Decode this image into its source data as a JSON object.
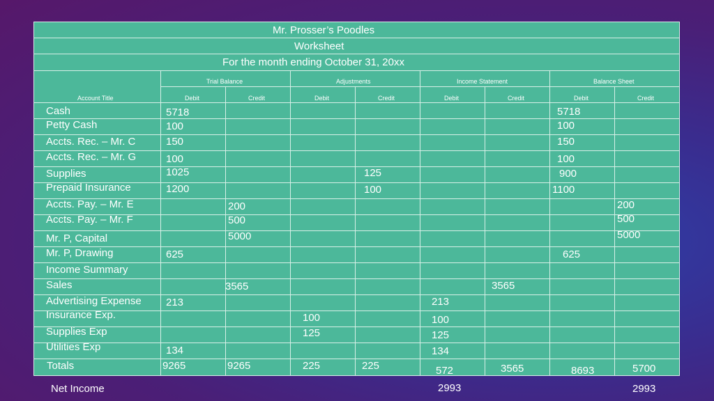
{
  "header": {
    "company": "Mr. Prosser’s Poodles",
    "document": "Worksheet",
    "period": "For the month ending October 31, 20xx"
  },
  "column_groups": {
    "trial_balance": "Trial Balance",
    "adjustments": "Adjustments",
    "income_statement": "Income Statement",
    "balance_sheet": "Balance Sheet"
  },
  "column_headers": {
    "account_title": "Account Title",
    "debit": "Debit",
    "credit": "Credit"
  },
  "rows": [
    {
      "account": "Cash",
      "tb_debit": "5718",
      "tb_credit": "",
      "adj_debit": "",
      "adj_credit": "",
      "is_debit": "",
      "is_credit": "",
      "bs_debit": "5718",
      "bs_credit": ""
    },
    {
      "account": "Petty Cash",
      "tb_debit": "100",
      "tb_credit": "",
      "adj_debit": "",
      "adj_credit": "",
      "is_debit": "",
      "is_credit": "",
      "bs_debit": "100",
      "bs_credit": ""
    },
    {
      "account": "Accts. Rec. – Mr. C",
      "tb_debit": "150",
      "tb_credit": "",
      "adj_debit": "",
      "adj_credit": "",
      "is_debit": "",
      "is_credit": "",
      "bs_debit": "150",
      "bs_credit": ""
    },
    {
      "account": "Accts. Rec. – Mr. G",
      "tb_debit": "100",
      "tb_credit": "",
      "adj_debit": "",
      "adj_credit": "",
      "is_debit": "",
      "is_credit": "",
      "bs_debit": "100",
      "bs_credit": ""
    },
    {
      "account": "Supplies",
      "tb_debit": "1025",
      "tb_credit": "",
      "adj_debit": "",
      "adj_credit": "125",
      "is_debit": "",
      "is_credit": "",
      "bs_debit": "900",
      "bs_credit": ""
    },
    {
      "account": "Prepaid Insurance",
      "tb_debit": "1200",
      "tb_credit": "",
      "adj_debit": "",
      "adj_credit": "100",
      "is_debit": "",
      "is_credit": "",
      "bs_debit": "1100",
      "bs_credit": ""
    },
    {
      "account": "Accts. Pay. – Mr. E",
      "tb_debit": "",
      "tb_credit": "200",
      "adj_debit": "",
      "adj_credit": "",
      "is_debit": "",
      "is_credit": "",
      "bs_debit": "",
      "bs_credit": "200"
    },
    {
      "account": "Accts. Pay. – Mr. F",
      "tb_debit": "",
      "tb_credit": "500",
      "adj_debit": "",
      "adj_credit": "",
      "is_debit": "",
      "is_credit": "",
      "bs_debit": "",
      "bs_credit": "500"
    },
    {
      "account": "Mr. P, Capital",
      "tb_debit": "",
      "tb_credit": "5000",
      "adj_debit": "",
      "adj_credit": "",
      "is_debit": "",
      "is_credit": "",
      "bs_debit": "",
      "bs_credit": "5000"
    },
    {
      "account": "Mr. P, Drawing",
      "tb_debit": "625",
      "tb_credit": "",
      "adj_debit": "",
      "adj_credit": "",
      "is_debit": "",
      "is_credit": "",
      "bs_debit": "625",
      "bs_credit": ""
    },
    {
      "account": "Income Summary",
      "tb_debit": "",
      "tb_credit": "",
      "adj_debit": "",
      "adj_credit": "",
      "is_debit": "",
      "is_credit": "",
      "bs_debit": "",
      "bs_credit": ""
    },
    {
      "account": "Sales",
      "tb_debit": "",
      "tb_credit": "3565",
      "adj_debit": "",
      "adj_credit": "",
      "is_debit": "",
      "is_credit": "3565",
      "bs_debit": "",
      "bs_credit": ""
    },
    {
      "account": "Advertising Expense",
      "tb_debit": "213",
      "tb_credit": "",
      "adj_debit": "",
      "adj_credit": "",
      "is_debit": "213",
      "is_credit": "",
      "bs_debit": "",
      "bs_credit": ""
    },
    {
      "account": "Insurance Exp.",
      "tb_debit": "",
      "tb_credit": "",
      "adj_debit": "100",
      "adj_credit": "",
      "is_debit": "100",
      "is_credit": "",
      "bs_debit": "",
      "bs_credit": ""
    },
    {
      "account": "Supplies  Exp",
      "tb_debit": "",
      "tb_credit": "",
      "adj_debit": "125",
      "adj_credit": "",
      "is_debit": "125",
      "is_credit": "",
      "bs_debit": "",
      "bs_credit": ""
    },
    {
      "account": "Utilities Exp",
      "tb_debit": "134",
      "tb_credit": "",
      "adj_debit": "",
      "adj_credit": "",
      "is_debit": "134",
      "is_credit": "",
      "bs_debit": "",
      "bs_credit": ""
    }
  ],
  "totals": {
    "label": "Totals",
    "tb_debit": "9265",
    "tb_credit": "9265",
    "adj_debit": "225",
    "adj_credit": "225",
    "is_debit": "572",
    "is_credit": "3565",
    "bs_debit": "8693",
    "bs_credit": "5700"
  },
  "net_income": {
    "label": "Net Income",
    "is_debit": "2993",
    "bs_credit": "2993"
  },
  "colors": {
    "table_fill": "#4cb89a",
    "grid_lines": "#d8f0e8",
    "text": "#ffffff"
  }
}
